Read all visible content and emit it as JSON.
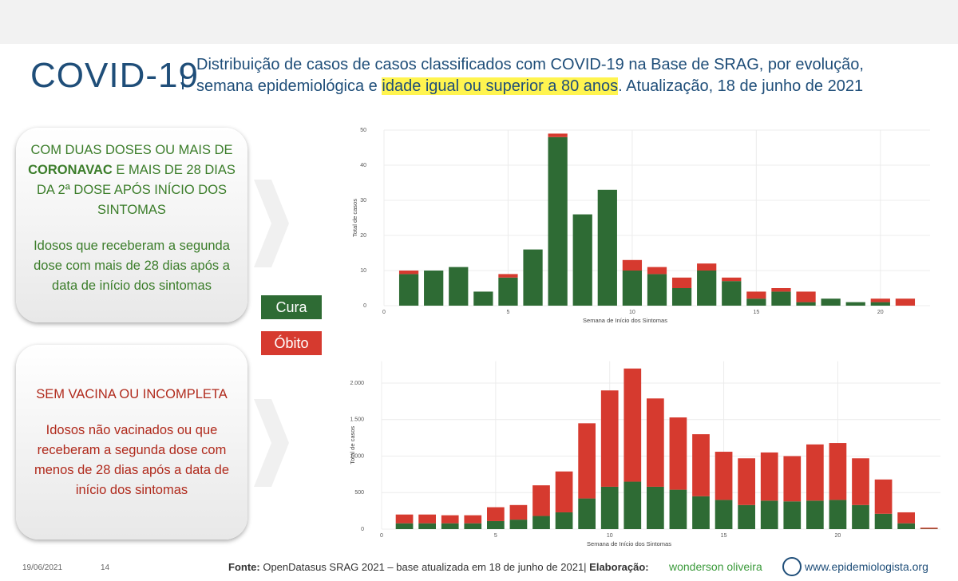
{
  "header": {
    "title": "COVID-19",
    "subtitle_line1": "Distribuição de casos de casos classificados com COVID-19 na Base de SRAG, por evolução,",
    "subtitle_before": "semana epidemiológica e ",
    "subtitle_highlight": "idade igual ou superior a 80 anos",
    "subtitle_after": ". Atualização, 18 de junho de 2021"
  },
  "boxes": [
    {
      "heading_before": "COM DUAS DOSES OU MAIS DE ",
      "heading_bold": "CORONAVAC",
      "heading_after": " E MAIS DE 28 DIAS DA 2ª DOSE APÓS INÍCIO DOS SINTOMAS",
      "body": "Idosos que receberam a segunda dose com mais de 28 dias após a data de início dos sintomas"
    },
    {
      "heading_before": "SEM VACINA OU INCOMPLETA",
      "heading_bold": "",
      "heading_after": "",
      "body": "Idosos não vacinados ou que receberam a segunda dose com menos de 28 dias após a data de início dos sintomas"
    }
  ],
  "chart_data": [
    {
      "type": "bar",
      "stacked": true,
      "xlabel": "Semana de Início dos Sintomas",
      "ylabel": "Total de casos",
      "x": [
        1,
        2,
        3,
        4,
        5,
        6,
        7,
        8,
        9,
        10,
        11,
        12,
        13,
        14,
        15,
        16,
        17,
        18,
        19,
        20,
        21
      ],
      "series": [
        {
          "name": "Cura",
          "color": "#2e6b34",
          "values": [
            9,
            10,
            11,
            4,
            8,
            16,
            48,
            26,
            33,
            10,
            9,
            5,
            10,
            7,
            2,
            4,
            1,
            2,
            1,
            1,
            0
          ]
        },
        {
          "name": "Óbito",
          "color": "#d63a2f",
          "values": [
            1,
            0,
            0,
            0,
            1,
            0,
            1,
            0,
            0,
            3,
            2,
            3,
            2,
            1,
            2,
            1,
            3,
            0,
            0,
            1,
            2
          ]
        }
      ],
      "xlim": [
        0,
        22
      ],
      "xticks": [
        0,
        5,
        10,
        15,
        20
      ],
      "ylim": [
        0,
        50
      ],
      "yticks": [
        0,
        10,
        20,
        30,
        40,
        50
      ],
      "grid": true
    },
    {
      "type": "bar",
      "stacked": true,
      "xlabel": "Semana de Início dos Sintomas",
      "ylabel": "Total de casos",
      "x": [
        1,
        2,
        3,
        4,
        5,
        6,
        7,
        8,
        9,
        10,
        11,
        12,
        13,
        14,
        15,
        16,
        17,
        18,
        19,
        20,
        21,
        22,
        23,
        24
      ],
      "series": [
        {
          "color": "#2e6b34",
          "values": [
            80,
            80,
            80,
            80,
            110,
            130,
            180,
            230,
            420,
            580,
            650,
            580,
            540,
            450,
            400,
            330,
            390,
            380,
            390,
            400,
            330,
            210,
            80,
            5
          ]
        },
        {
          "color": "#d63a2f",
          "values": [
            120,
            120,
            110,
            110,
            190,
            200,
            420,
            560,
            1030,
            1320,
            1550,
            1210,
            990,
            850,
            660,
            640,
            660,
            620,
            770,
            780,
            640,
            470,
            150,
            15
          ]
        }
      ],
      "xlim": [
        0,
        24.5
      ],
      "xticks": [
        0,
        5,
        10,
        15,
        20
      ],
      "ylim": [
        0,
        2300
      ],
      "yticks": [
        0,
        500,
        {
          "value": 1000,
          "label": "1.000"
        },
        {
          "value": 1500,
          "label": "1.500"
        },
        {
          "value": 2000,
          "label": "2.000"
        }
      ],
      "grid": true
    }
  ],
  "footer": {
    "date": "19/06/2021",
    "page": "14",
    "source_label": "Fonte:",
    "source": " OpenDatasus SRAG 2021 – base atualizada em 18 de junho de 2021|",
    "credit_label": "Elaboração:",
    "author": "wonderson oliveira",
    "site": "www.epidemiologista.org"
  }
}
